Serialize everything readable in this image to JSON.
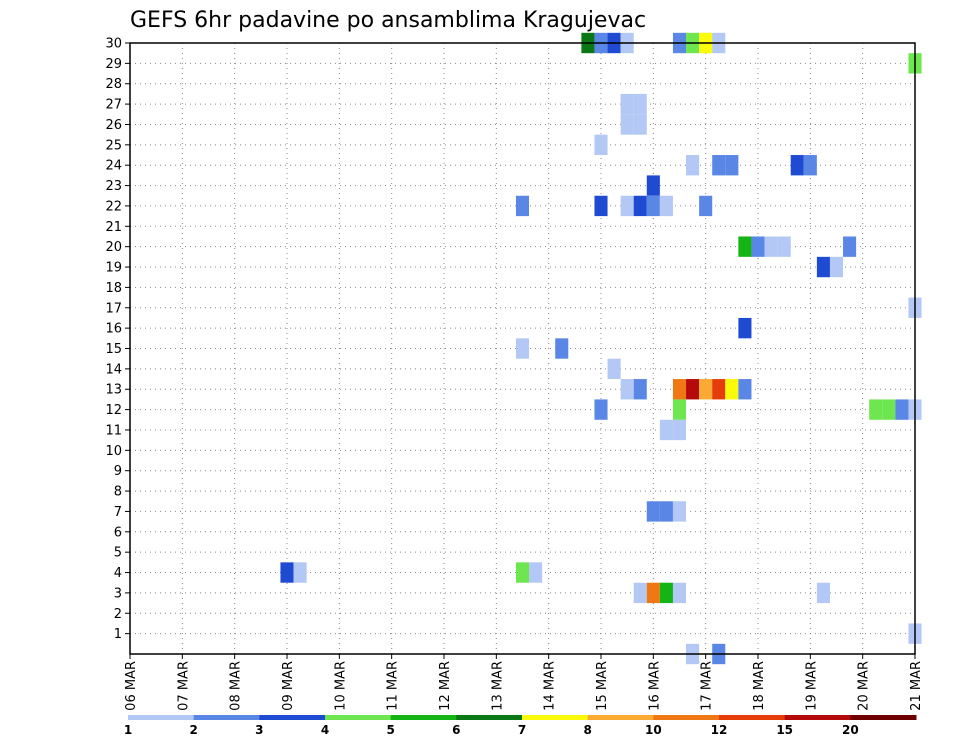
{
  "chart_data": {
    "type": "heatmap",
    "title": "GEFS 6hr padavine po ansamblima Kragujevac",
    "x_ticks": [
      "06 MAR",
      "07 MAR",
      "08 MAR",
      "09 MAR",
      "10 MAR",
      "11 MAR",
      "12 MAR",
      "13 MAR",
      "14 MAR",
      "15 MAR",
      "16 MAR",
      "17 MAR",
      "18 MAR",
      "19 MAR",
      "20 MAR",
      "21 MAR"
    ],
    "y_ticks": [
      "1",
      "2",
      "3",
      "4",
      "5",
      "6",
      "7",
      "8",
      "9",
      "10",
      "11",
      "12",
      "13",
      "14",
      "15",
      "16",
      "17",
      "18",
      "19",
      "20",
      "21",
      "22",
      "23",
      "24",
      "25",
      "26",
      "27",
      "28",
      "29",
      "30"
    ],
    "xlim": [
      0,
      60
    ],
    "ylim": [
      0,
      30
    ],
    "grid": true,
    "x_unit": "6-hour step since 06 MAR 00Z",
    "colorbar": {
      "labels": [
        "1",
        "2",
        "3",
        "4",
        "5",
        "6",
        "7",
        "8",
        "10",
        "12",
        "15",
        "20"
      ],
      "colors": [
        "#b4c8f5",
        "#5a87e6",
        "#1e4bd2",
        "#6ee650",
        "#14b414",
        "#0a7814",
        "#fafa0a",
        "#faaa32",
        "#f07814",
        "#e63c0a",
        "#b40a0a",
        "#6e0000"
      ]
    },
    "cells": [
      {
        "t": 12,
        "m": 4,
        "c": 3
      },
      {
        "t": 13,
        "m": 4,
        "c": 1
      },
      {
        "t": 30,
        "m": 4,
        "c": 4
      },
      {
        "t": 31,
        "m": 4,
        "c": 1
      },
      {
        "t": 30,
        "m": 15,
        "c": 1
      },
      {
        "t": 33,
        "m": 15,
        "c": 2
      },
      {
        "t": 30,
        "m": 22,
        "c": 2
      },
      {
        "t": 35,
        "m": 30,
        "c": 6
      },
      {
        "t": 36,
        "m": 30,
        "c": 2
      },
      {
        "t": 37,
        "m": 30,
        "c": 3
      },
      {
        "t": 38,
        "m": 30,
        "c": 1
      },
      {
        "t": 42,
        "m": 30,
        "c": 2
      },
      {
        "t": 43,
        "m": 30,
        "c": 4
      },
      {
        "t": 44,
        "m": 30,
        "c": 7
      },
      {
        "t": 45,
        "m": 30,
        "c": 1
      },
      {
        "t": 60,
        "m": 29,
        "c": 4
      },
      {
        "t": 38,
        "m": 27,
        "c": 1
      },
      {
        "t": 39,
        "m": 27,
        "c": 1
      },
      {
        "t": 38,
        "m": 26,
        "c": 1
      },
      {
        "t": 39,
        "m": 26,
        "c": 1
      },
      {
        "t": 36,
        "m": 25,
        "c": 1
      },
      {
        "t": 43,
        "m": 24,
        "c": 1
      },
      {
        "t": 45,
        "m": 24,
        "c": 2
      },
      {
        "t": 46,
        "m": 24,
        "c": 2
      },
      {
        "t": 51,
        "m": 24,
        "c": 3
      },
      {
        "t": 52,
        "m": 24,
        "c": 2
      },
      {
        "t": 40,
        "m": 23,
        "c": 3
      },
      {
        "t": 36,
        "m": 22,
        "c": 3
      },
      {
        "t": 38,
        "m": 22,
        "c": 1
      },
      {
        "t": 39,
        "m": 22,
        "c": 3
      },
      {
        "t": 40,
        "m": 22,
        "c": 2
      },
      {
        "t": 41,
        "m": 22,
        "c": 1
      },
      {
        "t": 44,
        "m": 22,
        "c": 2
      },
      {
        "t": 47,
        "m": 20,
        "c": 5
      },
      {
        "t": 48,
        "m": 20,
        "c": 2
      },
      {
        "t": 49,
        "m": 20,
        "c": 1
      },
      {
        "t": 50,
        "m": 20,
        "c": 1
      },
      {
        "t": 55,
        "m": 20,
        "c": 2
      },
      {
        "t": 53,
        "m": 19,
        "c": 3
      },
      {
        "t": 54,
        "m": 19,
        "c": 1
      },
      {
        "t": 60,
        "m": 17,
        "c": 1
      },
      {
        "t": 47,
        "m": 16,
        "c": 3
      },
      {
        "t": 37,
        "m": 14,
        "c": 1
      },
      {
        "t": 38,
        "m": 13,
        "c": 1
      },
      {
        "t": 39,
        "m": 13,
        "c": 2
      },
      {
        "t": 42,
        "m": 13,
        "c": 9
      },
      {
        "t": 43,
        "m": 13,
        "c": 11
      },
      {
        "t": 44,
        "m": 13,
        "c": 8
      },
      {
        "t": 45,
        "m": 13,
        "c": 10
      },
      {
        "t": 46,
        "m": 13,
        "c": 7
      },
      {
        "t": 47,
        "m": 13,
        "c": 2
      },
      {
        "t": 36,
        "m": 12,
        "c": 2
      },
      {
        "t": 42,
        "m": 12,
        "c": 4
      },
      {
        "t": 57,
        "m": 12,
        "c": 4
      },
      {
        "t": 58,
        "m": 12,
        "c": 4
      },
      {
        "t": 59,
        "m": 12,
        "c": 2
      },
      {
        "t": 60,
        "m": 12,
        "c": 1
      },
      {
        "t": 41,
        "m": 11,
        "c": 1
      },
      {
        "t": 42,
        "m": 11,
        "c": 1
      },
      {
        "t": 40,
        "m": 7,
        "c": 2
      },
      {
        "t": 41,
        "m": 7,
        "c": 2
      },
      {
        "t": 42,
        "m": 7,
        "c": 1
      },
      {
        "t": 39,
        "m": 3,
        "c": 1
      },
      {
        "t": 40,
        "m": 3,
        "c": 9
      },
      {
        "t": 41,
        "m": 3,
        "c": 5
      },
      {
        "t": 42,
        "m": 3,
        "c": 1
      },
      {
        "t": 53,
        "m": 3,
        "c": 1
      },
      {
        "t": 60,
        "m": 1,
        "c": 1
      },
      {
        "t": 43,
        "m": 0,
        "c": 1
      },
      {
        "t": 45,
        "m": 0,
        "c": 2
      }
    ]
  }
}
